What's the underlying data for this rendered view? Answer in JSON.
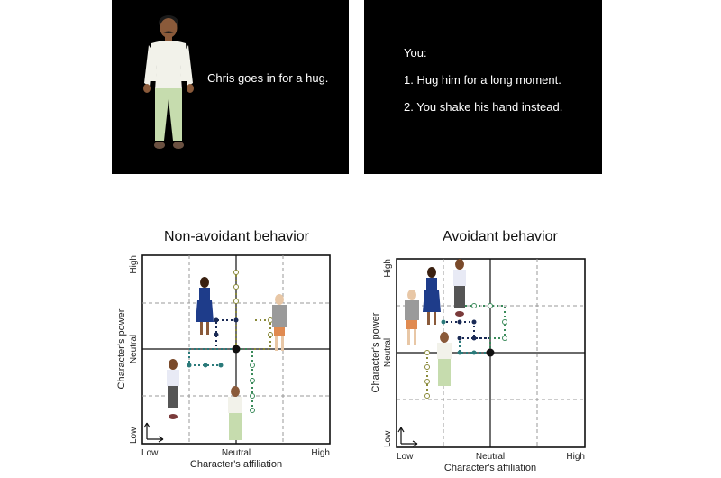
{
  "scenario": {
    "character_text": "Chris goes in for a hug.",
    "prompt": "You:",
    "options": [
      "1. Hug him for a long moment.",
      "2. You shake his hand instead."
    ]
  },
  "charts": [
    {
      "title": "Non-avoidant behavior",
      "xlabel": "Character's affiliation",
      "ylabel": "Character's power",
      "xticks": [
        "Low",
        "Neutral",
        "High"
      ],
      "yticks": [
        "Low",
        "Neutral",
        "High"
      ]
    },
    {
      "title": "Avoidant behavior",
      "xlabel": "Character's affiliation",
      "ylabel": "Character's power",
      "xticks": [
        "Low",
        "Neutral",
        "High"
      ],
      "yticks": [
        "Low",
        "Neutral",
        "High"
      ]
    }
  ],
  "colors": {
    "path_dark": "#1a2a55",
    "path_teal": "#2a7a7a",
    "path_olive": "#8a8a3a",
    "path_green": "#3a8a5a",
    "grid_dashed": "#999999"
  }
}
